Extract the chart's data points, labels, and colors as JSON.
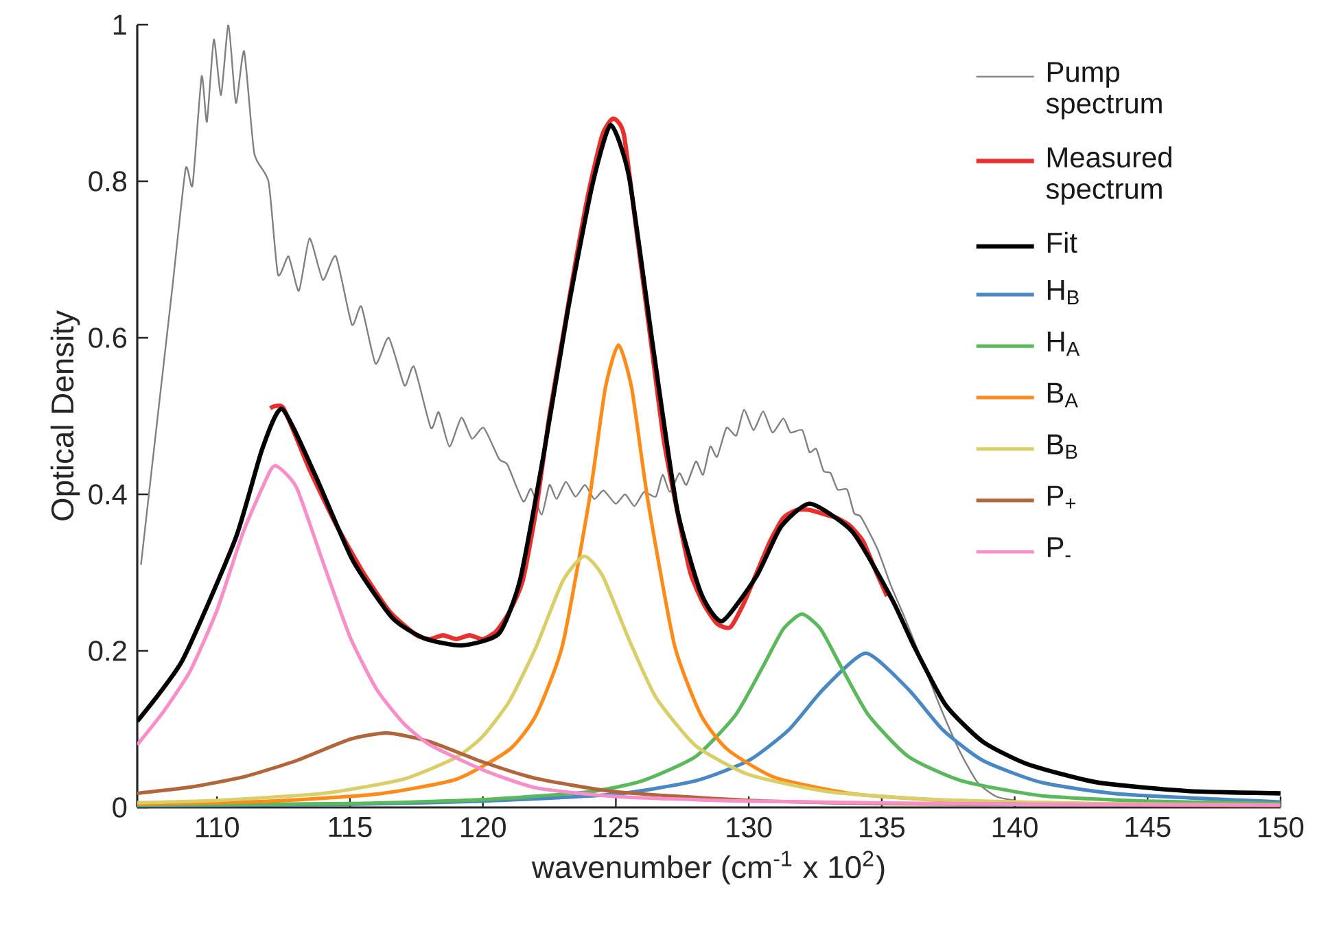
{
  "chart_data": {
    "type": "line",
    "xlabel": "wavenumber (cm$^{-1}$ x 10$^{2}$)",
    "ylabel": "Optical Density",
    "xlim": [
      107,
      150
    ],
    "ylim": [
      0,
      1
    ],
    "xticks": [
      110,
      115,
      120,
      125,
      130,
      135,
      140,
      145,
      150
    ],
    "yticks": [
      0,
      0.2,
      0.4,
      0.6,
      0.8,
      1
    ],
    "legend": "top right",
    "grid": false,
    "line_style": "solid",
    "series": [
      {
        "name": "Pump spectrum",
        "color": "#808080",
        "x": [
          107.14,
          107.63,
          108.33,
          108.82,
          109.08,
          109.42,
          109.62,
          109.88,
          110.15,
          110.43,
          110.71,
          111.02,
          111.4,
          111.94,
          112.29,
          112.69,
          113.08,
          113.48,
          113.98,
          114.47,
          115.07,
          115.43,
          115.96,
          116.46,
          117.05,
          117.41,
          118.04,
          118.34,
          118.74,
          119.19,
          119.59,
          120.03,
          120.61,
          120.92,
          121.51,
          121.81,
          122.21,
          122.5,
          122.77,
          123.12,
          123.48,
          123.84,
          124.19,
          124.54,
          124.99,
          125.35,
          125.7,
          126.06,
          126.5,
          126.76,
          127.03,
          127.39,
          127.65,
          128.01,
          128.28,
          128.55,
          128.81,
          129.16,
          129.53,
          129.82,
          130.18,
          130.54,
          130.89,
          131.3,
          131.57,
          132.01,
          132.28,
          132.54,
          132.81,
          133.08,
          133.34,
          133.7,
          133.96,
          134.22,
          134.84,
          135.35,
          135.87,
          136.55,
          137.24,
          137.93,
          138.6,
          139.3,
          139.99
        ],
        "values": [
          0.31,
          0.458,
          0.667,
          0.816,
          0.795,
          0.934,
          0.876,
          0.981,
          0.91,
          1.0,
          0.9,
          0.966,
          0.836,
          0.799,
          0.681,
          0.704,
          0.66,
          0.727,
          0.674,
          0.704,
          0.617,
          0.64,
          0.567,
          0.6,
          0.539,
          0.563,
          0.485,
          0.505,
          0.461,
          0.498,
          0.471,
          0.485,
          0.445,
          0.438,
          0.391,
          0.407,
          0.374,
          0.412,
          0.394,
          0.416,
          0.397,
          0.412,
          0.394,
          0.405,
          0.388,
          0.4,
          0.385,
          0.403,
          0.397,
          0.425,
          0.403,
          0.427,
          0.412,
          0.442,
          0.425,
          0.461,
          0.448,
          0.485,
          0.475,
          0.508,
          0.482,
          0.506,
          0.479,
          0.497,
          0.479,
          0.482,
          0.454,
          0.458,
          0.43,
          0.427,
          0.406,
          0.406,
          0.376,
          0.371,
          0.33,
          0.283,
          0.242,
          0.184,
          0.125,
          0.072,
          0.032,
          0.014,
          0.009
        ]
      },
      {
        "name": "Measured spectrum",
        "color": "#e8312f",
        "x": [
          112,
          112.5,
          113.5,
          114.5,
          115.5,
          116.5,
          117.5,
          118,
          118.5,
          119,
          119.5,
          120,
          120.5,
          121,
          121.5,
          122,
          122.5,
          123,
          123.5,
          124,
          124.5,
          124.9,
          125.3,
          125.8,
          126.3,
          126.8,
          127.3,
          127.8,
          128.3,
          128.8,
          129.3,
          129.8,
          130.3,
          130.8,
          131.3,
          131.8,
          132.3,
          132.8,
          133.3,
          133.8,
          134.3,
          134.8,
          135.2
        ],
        "values": [
          0.51,
          0.51,
          0.43,
          0.36,
          0.3,
          0.25,
          0.22,
          0.215,
          0.22,
          0.215,
          0.22,
          0.215,
          0.225,
          0.25,
          0.29,
          0.38,
          0.5,
          0.6,
          0.7,
          0.79,
          0.86,
          0.88,
          0.86,
          0.73,
          0.6,
          0.47,
          0.38,
          0.3,
          0.26,
          0.235,
          0.23,
          0.26,
          0.3,
          0.34,
          0.37,
          0.38,
          0.38,
          0.375,
          0.37,
          0.36,
          0.34,
          0.3,
          0.27
        ]
      },
      {
        "name": "Fit",
        "color": "#000000",
        "x": [
          107,
          108.7,
          110.7,
          111.7,
          112.45,
          113.7,
          115.1,
          116.6,
          117.8,
          119.2,
          120.6,
          121.4,
          122.3,
          123.2,
          124.1,
          124.8,
          125.5,
          126.4,
          127.3,
          128.2,
          129.0,
          130.3,
          131.2,
          132.3,
          133.9,
          135.4,
          136.2,
          137.4,
          138.8,
          140.5,
          143.1,
          146.5,
          150
        ],
        "values": [
          0.11,
          0.188,
          0.344,
          0.458,
          0.509,
          0.424,
          0.316,
          0.242,
          0.216,
          0.207,
          0.222,
          0.291,
          0.454,
          0.636,
          0.793,
          0.872,
          0.805,
          0.588,
          0.382,
          0.274,
          0.238,
          0.296,
          0.358,
          0.388,
          0.352,
          0.265,
          0.207,
          0.131,
          0.084,
          0.055,
          0.032,
          0.021,
          0.018
        ]
      },
      {
        "name": "H$_{B}$",
        "color": "#4a88c4",
        "x": [
          107,
          115,
          120,
          125,
          128,
          130,
          131.5,
          132.8,
          134.4,
          136,
          137.3,
          138.8,
          141,
          144,
          150
        ],
        "values": [
          0.002,
          0.004,
          0.008,
          0.017,
          0.034,
          0.06,
          0.099,
          0.151,
          0.197,
          0.151,
          0.099,
          0.06,
          0.032,
          0.017,
          0.007
        ]
      },
      {
        "name": "H$_{A}$",
        "color": "#5cb85c",
        "x": [
          107,
          115,
          120,
          124,
          126,
          128,
          129.5,
          130.5,
          131.3,
          132,
          132.7,
          133.5,
          134.5,
          136,
          138,
          141,
          145,
          150
        ],
        "values": [
          0.003,
          0.005,
          0.01,
          0.02,
          0.034,
          0.065,
          0.118,
          0.178,
          0.228,
          0.247,
          0.228,
          0.178,
          0.118,
          0.065,
          0.034,
          0.015,
          0.008,
          0.005
        ]
      },
      {
        "name": "B$_{A}$",
        "color": "#ff8c1a",
        "x": [
          107,
          112,
          116,
          119,
          121,
          122,
          123,
          124,
          124.6,
          125.1,
          125.6,
          126.2,
          127.2,
          128.2,
          129.2,
          131,
          134,
          138,
          144,
          150
        ],
        "values": [
          0.004,
          0.008,
          0.017,
          0.036,
          0.074,
          0.118,
          0.208,
          0.393,
          0.535,
          0.591,
          0.535,
          0.393,
          0.208,
          0.118,
          0.074,
          0.038,
          0.017,
          0.008,
          0.004,
          0.003
        ]
      },
      {
        "name": "B$_{B}$",
        "color": "#d9cf6a",
        "x": [
          107,
          110,
          114,
          117,
          119,
          120,
          121,
          122,
          123,
          123.8,
          124.5,
          125.5,
          126.5,
          128,
          130,
          133,
          137,
          143,
          150
        ],
        "values": [
          0.006,
          0.009,
          0.018,
          0.036,
          0.064,
          0.091,
          0.136,
          0.205,
          0.289,
          0.321,
          0.296,
          0.214,
          0.141,
          0.079,
          0.042,
          0.02,
          0.01,
          0.005,
          0.003
        ]
      },
      {
        "name": "P$_{+}$",
        "color": "#b0653a",
        "x": [
          107,
          109,
          111,
          113,
          115,
          116.4,
          118,
          120,
          122,
          125,
          130,
          135,
          140,
          150
        ],
        "values": [
          0.018,
          0.026,
          0.039,
          0.06,
          0.087,
          0.095,
          0.084,
          0.058,
          0.037,
          0.02,
          0.009,
          0.005,
          0.004,
          0.002
        ]
      },
      {
        "name": "P$_{-}$",
        "color": "#f78fc8",
        "x": [
          107,
          108,
          109,
          110,
          111,
          112,
          112.3,
          113,
          114,
          115,
          116,
          117,
          118,
          120,
          122,
          125,
          130,
          140,
          150
        ],
        "values": [
          0.08,
          0.123,
          0.175,
          0.252,
          0.353,
          0.43,
          0.435,
          0.408,
          0.312,
          0.218,
          0.151,
          0.108,
          0.08,
          0.048,
          0.025,
          0.014,
          0.008,
          0.004,
          0.003
        ]
      }
    ]
  }
}
